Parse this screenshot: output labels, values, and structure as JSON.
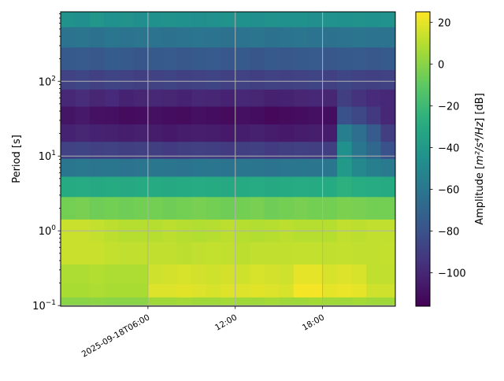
{
  "chart_data": {
    "type": "heatmap",
    "title": "",
    "xlabel": "",
    "ylabel": "Period [s]",
    "y_scale": "log",
    "ylim": [
      0.098,
      850
    ],
    "xlim": [
      "2025-09-18T00:00",
      "2025-09-18T23:00"
    ],
    "x_ticks": [
      {
        "time": "2025-09-18T06:00",
        "label": "2025-09-18T06:00"
      },
      {
        "time": "2025-09-18T12:00",
        "label": "12:00"
      },
      {
        "time": "2025-09-18T18:00",
        "label": "18:00"
      }
    ],
    "y_ticks": [
      {
        "value": 0.1,
        "base": "10",
        "exp": "−1"
      },
      {
        "value": 1,
        "base": "10",
        "exp": "0"
      },
      {
        "value": 10,
        "base": "10",
        "exp": "1"
      },
      {
        "value": 100,
        "base": "10",
        "exp": "2"
      }
    ],
    "grid": true,
    "colormap": "viridis",
    "colorbar": {
      "label_prefix": "Amplitude [",
      "label_units": "m²/s⁴/Hz",
      "label_suffix": "] [dB]",
      "range": [
        -116,
        25
      ],
      "ticks": [
        20,
        0,
        -20,
        -40,
        -60,
        -80,
        -100
      ],
      "tick_labels": [
        "20",
        "0",
        "−20",
        "−40",
        "−60",
        "−80",
        "−100"
      ]
    },
    "time_hours": [
      "00:00",
      "01:00",
      "02:00",
      "03:00",
      "04:00",
      "05:00",
      "06:00",
      "07:00",
      "08:00",
      "09:00",
      "10:00",
      "11:00",
      "12:00",
      "13:00",
      "14:00",
      "15:00",
      "16:00",
      "17:00",
      "18:00",
      "19:00",
      "20:00",
      "21:00",
      "22:00"
    ],
    "periods": [
      700,
      400,
      200,
      100,
      60,
      35,
      20,
      12,
      7,
      4,
      2,
      1,
      0.5,
      0.25,
      0.15,
      0.11
    ],
    "values_db": [
      [
        -44,
        -46,
        -42,
        -45,
        -44,
        -46,
        -45,
        -44,
        -45,
        -46,
        -45,
        -44,
        -45,
        -46,
        -44,
        -45,
        -45,
        -46,
        -44,
        -45,
        -44,
        -45,
        -44
      ],
      [
        -62,
        -61,
        -63,
        -60,
        -62,
        -61,
        -62,
        -63,
        -62,
        -61,
        -62,
        -63,
        -62,
        -61,
        -63,
        -62,
        -61,
        -62,
        -63,
        -62,
        -61,
        -62,
        -62
      ],
      [
        -76,
        -75,
        -77,
        -74,
        -76,
        -78,
        -76,
        -75,
        -77,
        -76,
        -75,
        -77,
        -76,
        -78,
        -76,
        -77,
        -76,
        -75,
        -77,
        -76,
        -75,
        -77,
        -76
      ],
      [
        -88,
        -86,
        -89,
        -87,
        -88,
        -90,
        -88,
        -87,
        -89,
        -88,
        -87,
        -89,
        -88,
        -90,
        -88,
        -89,
        -88,
        -87,
        -89,
        -86,
        -88,
        -89,
        -88
      ],
      [
        -100,
        -98,
        -101,
        -99,
        -102,
        -101,
        -100,
        -101,
        -102,
        -100,
        -101,
        -102,
        -100,
        -101,
        -103,
        -102,
        -101,
        -100,
        -101,
        -90,
        -95,
        -99,
        -100
      ],
      [
        -108,
        -106,
        -109,
        -110,
        -112,
        -111,
        -110,
        -111,
        -112,
        -110,
        -111,
        -112,
        -110,
        -111,
        -113,
        -112,
        -111,
        -110,
        -111,
        -80,
        -85,
        -92,
        -100
      ],
      [
        -102,
        -101,
        -102,
        -103,
        -104,
        -103,
        -105,
        -106,
        -105,
        -104,
        -105,
        -106,
        -104,
        -103,
        -105,
        -106,
        -105,
        -104,
        -105,
        -55,
        -65,
        -75,
        -90
      ],
      [
        -88,
        -87,
        -89,
        -88,
        -90,
        -89,
        -90,
        -91,
        -90,
        -89,
        -90,
        -91,
        -90,
        -89,
        -91,
        -90,
        -89,
        -90,
        -90,
        -45,
        -60,
        -68,
        -80
      ],
      [
        -60,
        -59,
        -61,
        -60,
        -62,
        -61,
        -60,
        -61,
        -62,
        -60,
        -61,
        -62,
        -60,
        -61,
        -62,
        -61,
        -60,
        -61,
        -60,
        -40,
        -50,
        -55,
        -58
      ],
      [
        -30,
        -29,
        -31,
        -30,
        -31,
        -30,
        -30,
        -31,
        -30,
        -29,
        -30,
        -31,
        -30,
        -29,
        -31,
        -30,
        -29,
        -30,
        -30,
        -26,
        -28,
        -29,
        -30
      ],
      [
        -5,
        -4,
        -6,
        -5,
        -6,
        -5,
        -5,
        -6,
        -5,
        -4,
        -5,
        -6,
        -5,
        -4,
        -6,
        -5,
        -4,
        -5,
        -5,
        -3,
        -4,
        -5,
        -5
      ],
      [
        14,
        14,
        13,
        11,
        10,
        10,
        10,
        11,
        10,
        9,
        10,
        11,
        10,
        9,
        10,
        11,
        10,
        10,
        10,
        12,
        11,
        12,
        12
      ],
      [
        14,
        14,
        14,
        13,
        12,
        12,
        12,
        12,
        11,
        12,
        13,
        12,
        11,
        12,
        12,
        12,
        13,
        13,
        12,
        13,
        12,
        12,
        13
      ],
      [
        8,
        8,
        9,
        8,
        8,
        8,
        15,
        16,
        17,
        16,
        15,
        16,
        15,
        17,
        16,
        15,
        20,
        20,
        17,
        18,
        17,
        12,
        12
      ],
      [
        7,
        7,
        8,
        7,
        7,
        7,
        18,
        18,
        19,
        18,
        17,
        18,
        18,
        19,
        18,
        17,
        23,
        23,
        20,
        21,
        20,
        15,
        15
      ],
      [
        0,
        0,
        1,
        0,
        0,
        0,
        5,
        5,
        6,
        5,
        5,
        6,
        5,
        5,
        6,
        5,
        5,
        6,
        5,
        5,
        6,
        5,
        5
      ]
    ]
  }
}
